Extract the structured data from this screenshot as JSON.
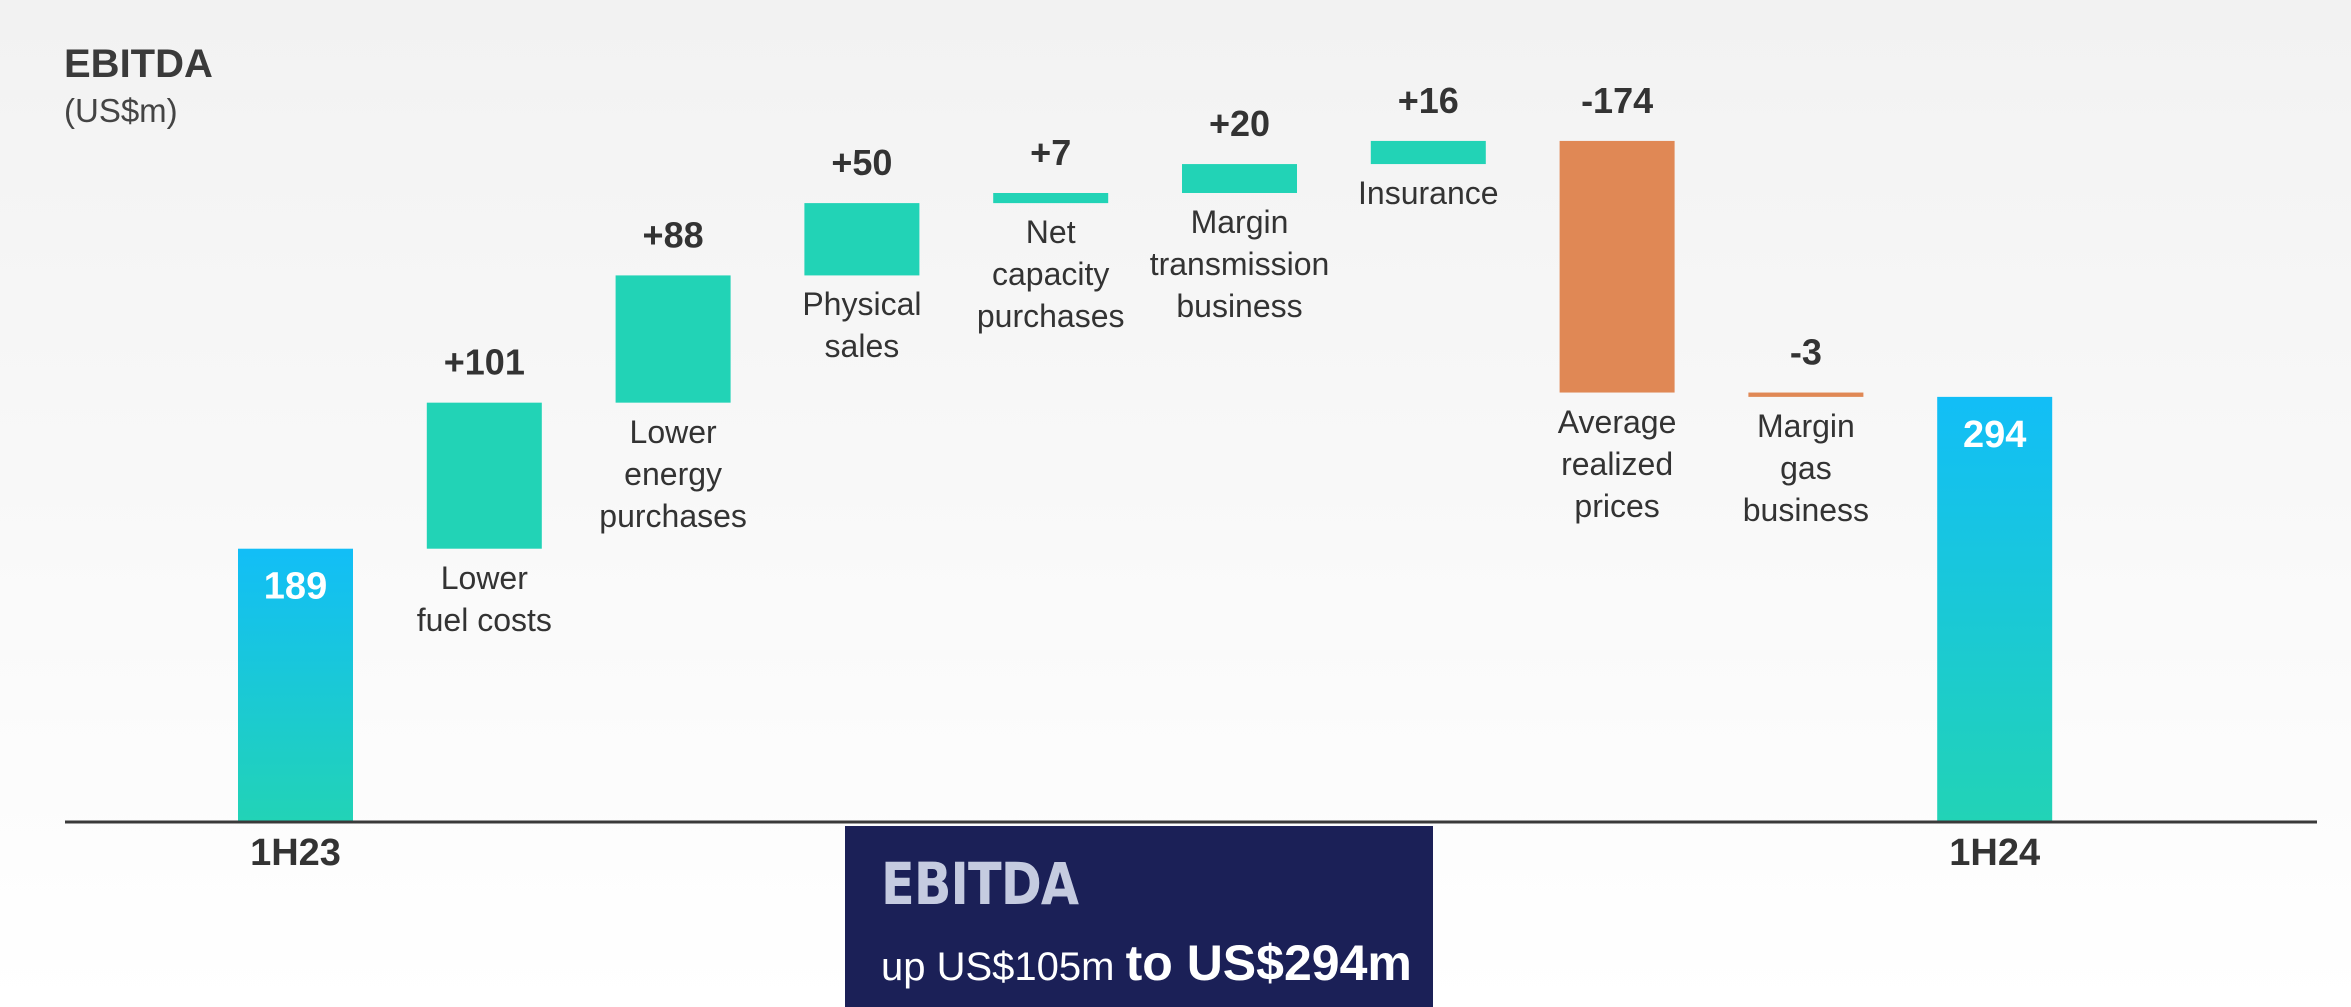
{
  "chart_data": {
    "type": "waterfall",
    "title": "EBITDA",
    "subtitle": "(US$m)",
    "categories": [
      "1H23",
      "Lower\nfuel costs",
      "Lower\nenergy\npurchases",
      "Physical\nsales",
      "Net\ncapacity\npurchases",
      "Margin\ntransmission\nbusiness",
      "Insurance",
      "Average\nrealized\nprices",
      "Margin\ngas\nbusiness",
      "1H24"
    ],
    "measure": [
      "total",
      "relative",
      "relative",
      "relative",
      "relative",
      "relative",
      "relative",
      "relative",
      "relative",
      "total"
    ],
    "values": [
      189,
      101,
      88,
      50,
      7,
      20,
      16,
      -174,
      -3,
      294
    ],
    "value_labels": [
      "189",
      "+101",
      "+88",
      "+50",
      "+7",
      "+20",
      "+16",
      "-174",
      "-3",
      "294"
    ],
    "colors": {
      "total_top": "#12bef7",
      "total_bottom": "#22d3b6",
      "increase": "#22d3b6",
      "decrease": "#e08855"
    },
    "ylim": [
      0,
      520
    ]
  },
  "callout": {
    "heading": "EBITDA",
    "text": "up US$105m",
    "highlight": "to US$294m"
  }
}
